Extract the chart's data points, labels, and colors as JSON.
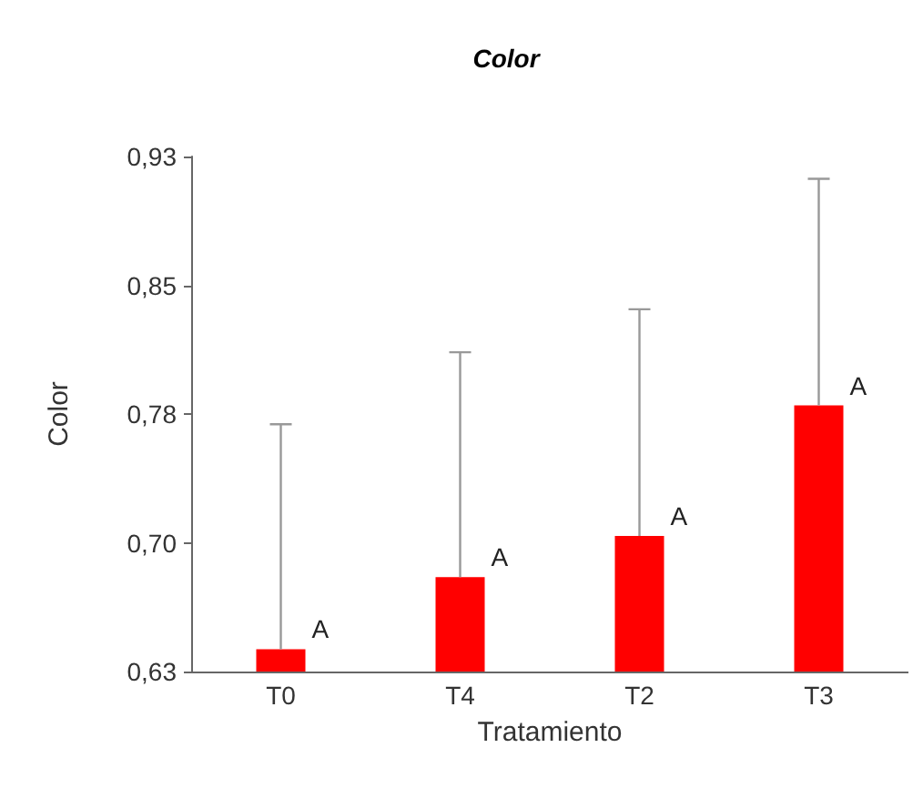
{
  "chart_data": {
    "type": "bar",
    "title": "Color",
    "xlabel": "Tratamiento",
    "ylabel": "Color",
    "categories": [
      "T0",
      "T4",
      "T2",
      "T3"
    ],
    "values": [
      0.643,
      0.685,
      0.709,
      0.785
    ],
    "errors": [
      [
        0.643,
        0.774
      ],
      [
        0.685,
        0.816
      ],
      [
        0.709,
        0.841
      ],
      [
        0.785,
        0.917
      ]
    ],
    "color": "#ff0000",
    "ylim": [
      0.63,
      0.93
    ],
    "yticks": [
      {
        "value": 0.63,
        "label": "0,63"
      },
      {
        "value": 0.705,
        "label": "0,70"
      },
      {
        "value": 0.78,
        "label": "0,78"
      },
      {
        "value": 0.855,
        "label": "0,85"
      },
      {
        "value": 0.93,
        "label": "0,93"
      }
    ],
    "annotations": [
      {
        "text": "A",
        "x": "T0",
        "y": 0.643
      },
      {
        "text": "A",
        "x": "T4",
        "y": 0.685
      },
      {
        "text": "A",
        "x": "T2",
        "y": 0.709
      },
      {
        "text": "A",
        "x": "T3",
        "y": 0.785
      }
    ],
    "grid": false
  }
}
